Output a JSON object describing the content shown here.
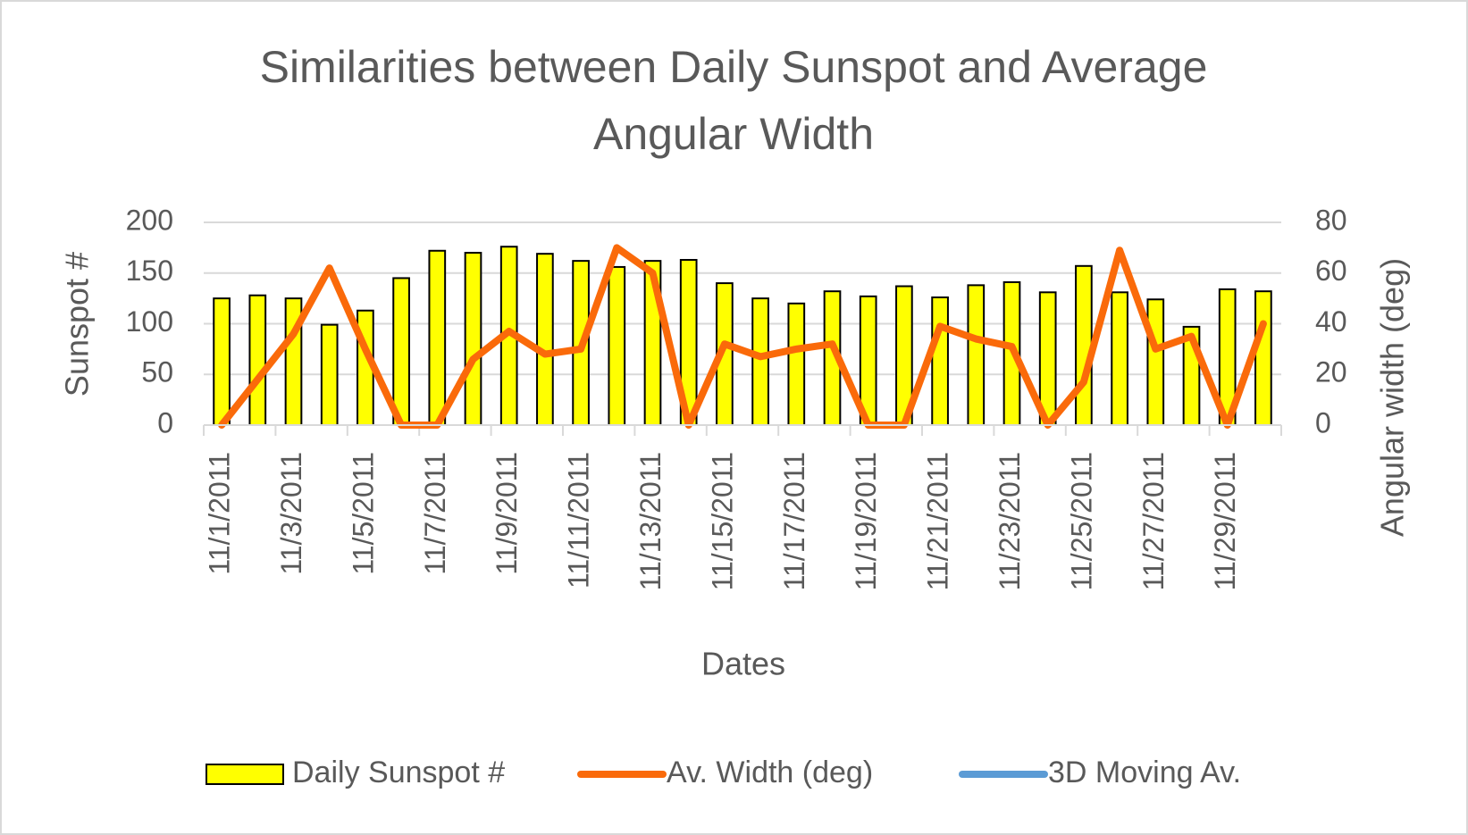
{
  "chart_data": {
    "type": "bar",
    "title": "Similarities between Daily Sunspot and Average Angular Width",
    "xlabel": "Dates",
    "ylabel": "Sunspot #",
    "y2label": "Angular width (deg)",
    "categories": [
      "11/1/2011",
      null,
      "11/3/2011",
      null,
      "11/5/2011",
      null,
      "11/7/2011",
      null,
      "11/9/2011",
      null,
      "11/11/2011",
      null,
      "11/13/2011",
      null,
      "11/15/2011",
      null,
      "11/17/2011",
      null,
      "11/19/2011",
      null,
      "11/21/2011",
      null,
      "11/23/2011",
      null,
      "11/25/2011",
      null,
      "11/27/2011",
      null,
      "11/29/2011",
      null
    ],
    "series": [
      {
        "name": "Daily Sunspot #",
        "type": "bar",
        "color": "#ffff00",
        "values": [
          125,
          128,
          125,
          99,
          113,
          145,
          172,
          170,
          176,
          169,
          162,
          156,
          162,
          163,
          140,
          125,
          120,
          132,
          127,
          137,
          126,
          138,
          141,
          131,
          157,
          131,
          124,
          97,
          134,
          132
        ]
      },
      {
        "name": "Av. Width (deg)",
        "type": "line",
        "axis": "y2",
        "color": "#fa6a0a",
        "values": [
          0,
          18,
          36,
          62,
          30,
          0,
          0,
          26,
          37,
          28,
          30,
          70,
          60,
          0,
          32,
          27,
          30,
          32,
          0,
          0,
          39,
          34,
          31,
          0,
          17,
          69,
          30,
          35,
          0,
          40
        ]
      },
      {
        "name": "3D Moving Av.",
        "type": "line",
        "axis": "y2",
        "color": "#5b9bd5",
        "values": [
          null,
          null,
          null,
          null,
          null,
          null,
          null,
          null,
          null,
          null,
          null,
          null,
          null,
          null,
          null,
          null,
          null,
          null,
          null,
          null,
          null,
          null,
          null,
          null,
          null,
          null,
          null,
          null,
          null,
          null
        ]
      }
    ],
    "ylim": [
      0,
      200
    ],
    "yticks": [
      0,
      50,
      100,
      150,
      200
    ],
    "y2lim": [
      0,
      80
    ],
    "y2ticks": [
      0,
      20,
      40,
      60,
      80
    ],
    "grid": true,
    "legend": "bottom"
  }
}
